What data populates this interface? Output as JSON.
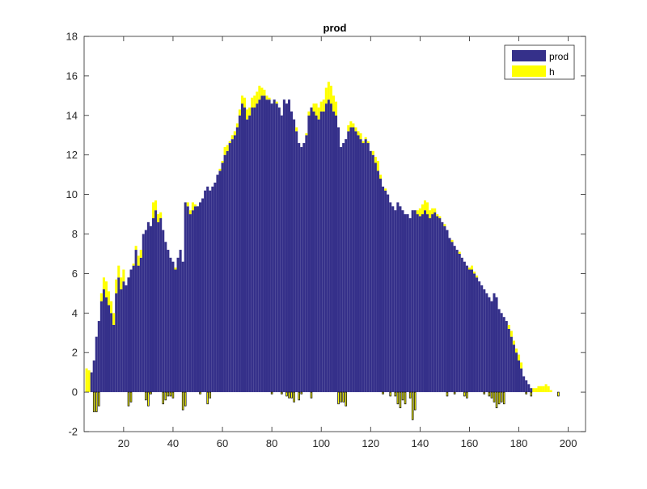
{
  "chart_data": {
    "type": "bar",
    "title": "prod",
    "xlabel": "",
    "ylabel": "",
    "xlim": [
      4,
      207
    ],
    "ylim": [
      -2,
      18
    ],
    "x_ticks": [
      "20",
      "40",
      "60",
      "80",
      "100",
      "120",
      "140",
      "160",
      "180",
      "200"
    ],
    "y_ticks": [
      "-2",
      "0",
      "2",
      "4",
      "6",
      "8",
      "10",
      "12",
      "14",
      "16",
      "18"
    ],
    "grid": false,
    "legend_position": "top-right",
    "colors": {
      "prod": "#35308A",
      "h": "#FFFF00",
      "h_edge": "#000000"
    },
    "series": [
      {
        "name": "prod",
        "x_start": 5,
        "values": [
          0.0,
          0.0,
          1.0,
          1.6,
          2.8,
          3.6,
          4.6,
          5.2,
          4.8,
          4.4,
          4.0,
          3.4,
          5.0,
          5.8,
          5.2,
          5.6,
          5.4,
          5.8,
          6.2,
          6.4,
          7.2,
          6.4,
          6.8,
          8.0,
          8.2,
          8.6,
          8.4,
          8.8,
          9.2,
          8.6,
          8.8,
          8.2,
          7.6,
          7.2,
          6.8,
          6.6,
          6.2,
          6.8,
          7.2,
          6.6,
          9.6,
          9.4,
          9.0,
          9.2,
          9.4,
          9.4,
          9.6,
          9.8,
          10.2,
          10.4,
          10.2,
          10.4,
          10.6,
          11.0,
          11.2,
          11.6,
          12.0,
          12.2,
          12.6,
          12.8,
          13.0,
          13.4,
          14.0,
          14.6,
          14.4,
          13.8,
          14.0,
          14.4,
          14.4,
          14.6,
          14.8,
          15.0,
          15.0,
          14.8,
          14.8,
          14.6,
          14.8,
          14.6,
          14.4,
          14.0,
          14.8,
          14.6,
          14.8,
          14.2,
          13.8,
          13.2,
          12.6,
          12.4,
          12.6,
          13.0,
          14.0,
          14.4,
          14.2,
          14.0,
          13.8,
          14.2,
          14.2,
          14.6,
          14.8,
          14.6,
          14.2,
          14.0,
          13.4,
          12.4,
          12.6,
          12.8,
          13.2,
          13.4,
          13.4,
          13.2,
          13.0,
          12.8,
          12.6,
          12.8,
          12.6,
          12.2,
          12.0,
          11.6,
          11.2,
          10.8,
          10.4,
          10.2,
          10.0,
          9.6,
          9.4,
          9.2,
          9.6,
          9.4,
          9.2,
          9.0,
          9.0,
          8.8,
          9.2,
          9.2,
          9.0,
          8.9,
          9.0,
          9.2,
          9.0,
          8.8,
          9.0,
          9.1,
          8.9,
          8.8,
          8.6,
          8.4,
          8.2,
          7.8,
          7.6,
          7.4,
          7.2,
          7.0,
          6.8,
          6.6,
          6.4,
          6.2,
          6.2,
          6.0,
          5.8,
          5.6,
          5.4,
          5.2,
          5.0,
          4.8,
          4.6,
          5.0,
          4.8,
          4.2,
          4.0,
          3.8,
          3.6,
          3.2,
          2.8,
          2.4,
          2.0,
          1.6,
          1.2,
          0.8,
          0.6,
          0.4,
          0.2,
          0.0
        ]
      },
      {
        "name": "h",
        "x_start": 5,
        "values": [
          1.2,
          1.1,
          0.0,
          -1.0,
          -1.0,
          -0.7,
          0.4,
          0.6,
          0.8,
          0.7,
          0.6,
          0.6,
          0.7,
          0.6,
          0.6,
          0.6,
          0.0,
          -0.7,
          -0.5,
          0.1,
          0.2,
          0.5,
          0.4,
          0.0,
          -0.4,
          -0.7,
          -0.1,
          0.8,
          0.5,
          0.4,
          0.3,
          -0.6,
          -0.4,
          -0.2,
          -0.2,
          -0.3,
          0.1,
          0.0,
          0.0,
          -0.9,
          -0.7,
          0.2,
          0.2,
          0.4,
          0.1,
          0.0,
          -0.1,
          0.0,
          0.0,
          -0.6,
          -0.3,
          0.0,
          0.0,
          0.0,
          0.1,
          0.1,
          0.4,
          0.3,
          0.1,
          0.2,
          0.2,
          0.2,
          0.3,
          0.4,
          0.5,
          0.5,
          0.4,
          0.5,
          0.6,
          0.6,
          0.7,
          0.4,
          0.3,
          0.2,
          0.1,
          -0.1,
          0.0,
          0.1,
          0.0,
          -0.1,
          0.0,
          -0.2,
          -0.3,
          -0.3,
          -0.5,
          0.2,
          -0.4,
          -0.1,
          0.0,
          0.1,
          0.2,
          -0.3,
          0.4,
          0.6,
          0.6,
          0.5,
          0.6,
          0.8,
          0.9,
          0.9,
          0.8,
          0.7,
          -0.6,
          -0.5,
          -0.5,
          -0.7,
          0.3,
          0.3,
          0.2,
          0.2,
          0.2,
          0.3,
          0.1,
          0.1,
          0.1,
          0.0,
          0.2,
          0.3,
          0.5,
          0.2,
          -0.1,
          0.1,
          0.0,
          -0.2,
          0.0,
          -0.2,
          -0.6,
          -0.8,
          -0.4,
          -0.6,
          0.0,
          -0.3,
          -1.4,
          -0.9,
          0.2,
          0.4,
          0.5,
          0.5,
          0.6,
          0.4,
          0.3,
          0.2,
          0.1,
          0.1,
          0.0,
          0.1,
          -0.2,
          0.0,
          0.1,
          -0.1,
          0.0,
          0.1,
          0.0,
          -0.2,
          -0.3,
          0.1,
          0.2,
          0.1,
          0.1,
          0.0,
          0.0,
          -0.1,
          0.0,
          -0.2,
          -0.3,
          -0.5,
          -0.8,
          -0.6,
          -0.5,
          -0.6,
          0.0,
          0.2,
          0.3,
          0.2,
          0.2,
          0.3,
          0.3,
          0.0,
          -0.1,
          0.0,
          -0.2,
          0.2,
          0.2,
          0.3,
          0.3,
          0.3,
          0.4,
          0.3,
          0.1,
          0.0,
          0.0,
          -0.2,
          0.0,
          0.0
        ]
      }
    ]
  }
}
